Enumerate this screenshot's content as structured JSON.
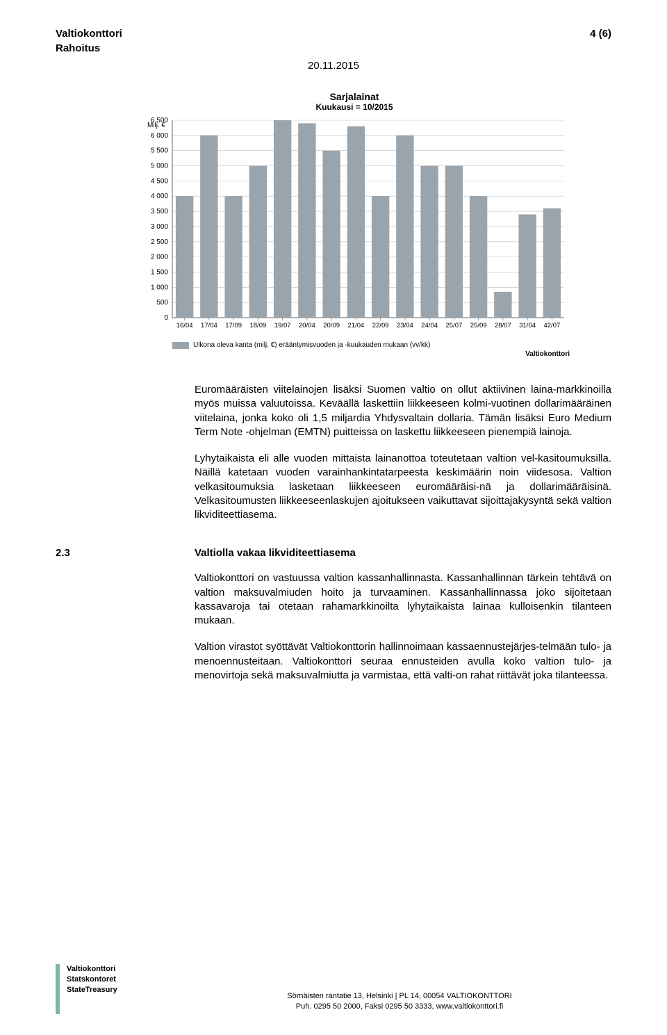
{
  "header": {
    "org": "Valtiokonttori",
    "dept": "Rahoitus",
    "page_num": "4 (6)",
    "date": "20.11.2015"
  },
  "chart": {
    "type": "bar",
    "title": "Sarjalainat",
    "subtitle": "Kuukausi = 10/2015",
    "y_axis_label": "Milj. €",
    "categories": [
      "16/04",
      "17/04",
      "17/09",
      "18/09",
      "19/07",
      "20/04",
      "20/09",
      "21/04",
      "22/09",
      "23/04",
      "24/04",
      "25/07",
      "25/09",
      "28/07",
      "31/04",
      "42/07"
    ],
    "values": [
      4000,
      6000,
      4000,
      5000,
      6500,
      6400,
      5500,
      6300,
      4000,
      6000,
      5000,
      5000,
      4000,
      850,
      3400,
      3600
    ],
    "bar_color": "#9aa4ad",
    "background_color": "#ffffff",
    "grid_color": "#bfbfbf",
    "ylim": [
      0,
      6500
    ],
    "ytick_step": 500,
    "yticks": [
      0,
      500,
      1000,
      1500,
      2000,
      2500,
      3000,
      3500,
      4000,
      4500,
      5000,
      5500,
      6000,
      6500
    ],
    "legend_text": "Ulkona oleva kanta (milj. €) erääntymisvuoden ja -kuukauden mukaan (vv/kk)",
    "footer_logo": "Valtiokonttori",
    "title_fontsize": 14,
    "subtitle_fontsize": 12,
    "label_fontsize": 10,
    "bar_width": 0.72
  },
  "body": {
    "p1": "Euromääräisten viitelainojen lisäksi Suomen valtio on ollut aktiivinen laina-markkinoilla myös muissa valuutoissa. Keväällä laskettiin liikkeeseen kolmi-vuotinen dollarimääräinen viitelaina, jonka koko oli 1,5 miljardia Yhdysvaltain dollaria. Tämän lisäksi Euro Medium Term Note -ohjelman (EMTN) puitteissa on laskettu liikkeeseen pienempiä lainoja.",
    "p2": "Lyhytaikaista eli alle vuoden mittaista lainanottoa toteutetaan valtion vel-kasitoumuksilla. Näillä katetaan vuoden varainhankintatarpeesta keskimäärin noin viidesosa. Valtion velkasitoumuksia lasketaan liikkeeseen euromääräisi-nä ja dollarimääräisinä. Velkasitoumusten liikkeeseenlaskujen ajoitukseen vaikuttavat sijoittajakysyntä sekä valtion likviditeettiasema."
  },
  "section": {
    "num": "2.3",
    "title": "Valtiolla vakaa likviditeettiasema",
    "p1": "Valtiokonttori on vastuussa valtion kassanhallinnasta. Kassanhallinnan tärkein tehtävä on valtion maksuvalmiuden hoito ja turvaaminen. Kassanhallinnassa joko sijoitetaan kassavaroja tai otetaan rahamarkkinoilta lyhytaikaista lainaa kulloisenkin tilanteen mukaan.",
    "p2": "Valtion virastot syöttävät Valtiokonttorin hallinnoimaan kassaennustejärjes-telmään tulo- ja menoennusteitaan. Valtiokonttori seuraa ennusteiden avulla koko valtion tulo- ja menovirtoja sekä maksuvalmiutta ja varmistaa, että valti-on rahat riittävät joka tilanteessa."
  },
  "footer": {
    "logo_line1": "Valtiokonttori",
    "logo_line2": "Statskontoret",
    "logo_line3": "StateTreasury",
    "addr_line1": "Sörnäisten rantatie 13, Helsinki  |  PL 14, 00054 VALTIOKONTTORI",
    "addr_line2": "Puh. 0295 50 2000, Faksi 0295 50 3333, www.valtiokonttori.fi"
  },
  "colors": {
    "logo_green": "#7fb89a",
    "text": "#000000"
  }
}
